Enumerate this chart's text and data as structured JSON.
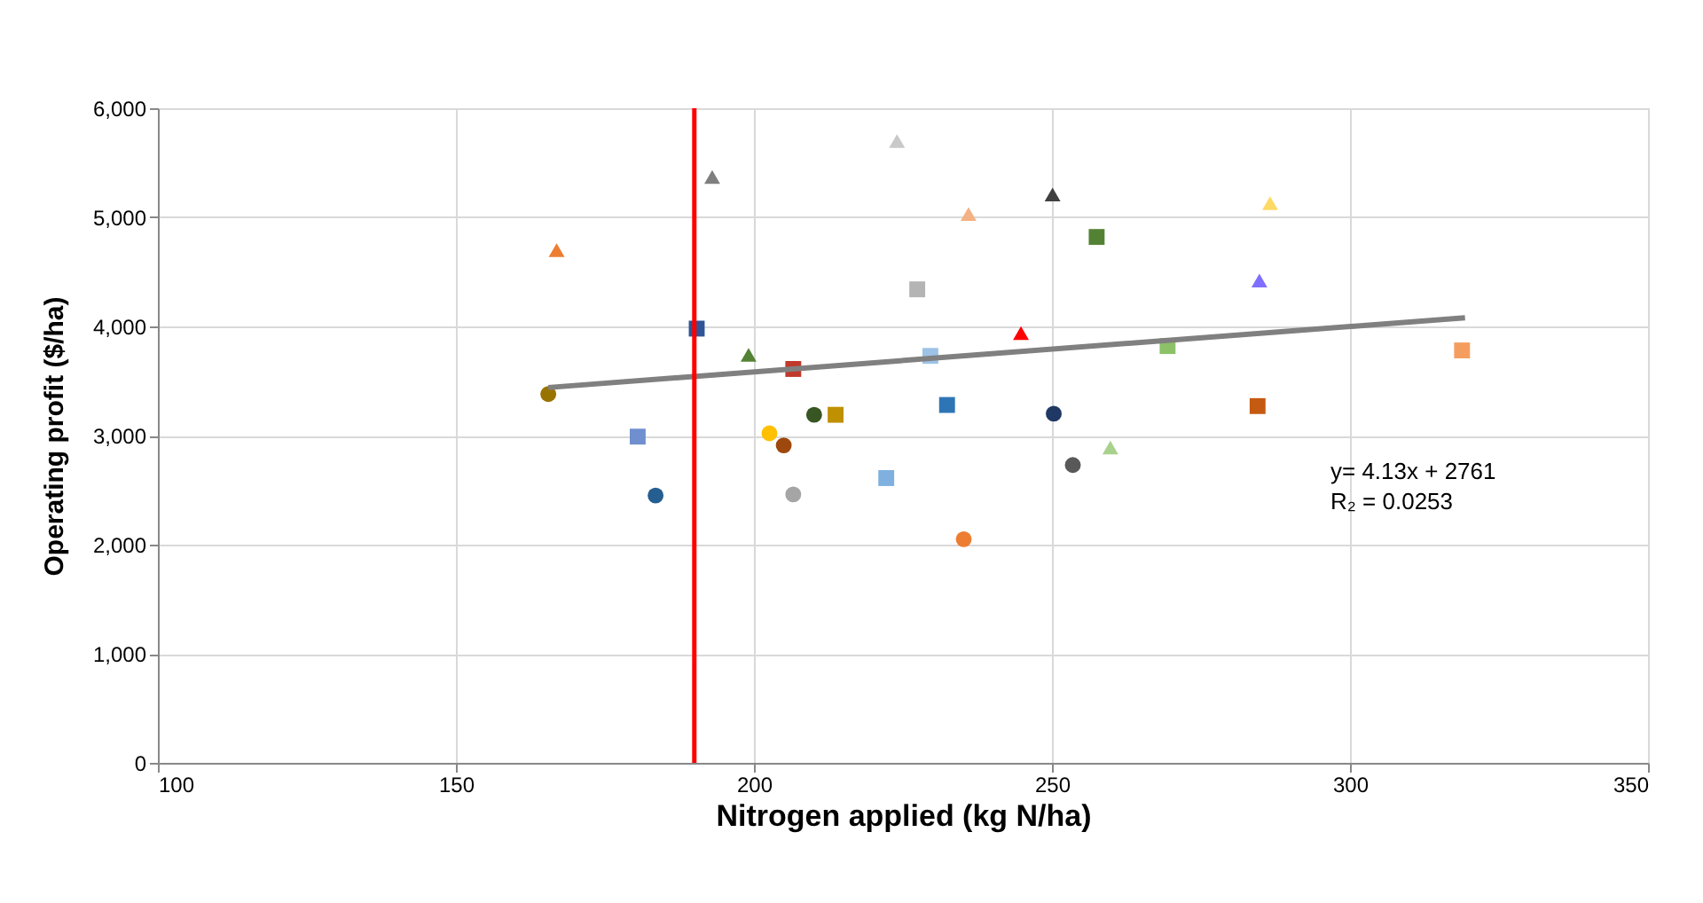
{
  "chart_data": {
    "type": "scatter",
    "xlabel": "Nitrogen applied (kg N/ha)",
    "ylabel": "Operating profit ($/ha)",
    "xlim": [
      100,
      350
    ],
    "xticks": [
      100,
      150,
      200,
      250,
      300,
      350
    ],
    "ylim": [
      0,
      6000
    ],
    "yticks": [
      {
        "value": 0,
        "label": "0"
      },
      {
        "value": 1000,
        "label": "1,000"
      },
      {
        "value": 2000,
        "label": "2,000"
      },
      {
        "value": 3000,
        "label": "3,000"
      },
      {
        "value": 4000,
        "label": "4,000"
      },
      {
        "value": 5000,
        "label": "5,000"
      },
      {
        "value": 6000,
        "label": "6,000"
      }
    ],
    "grid": true,
    "series": [
      {
        "marker": "triangle",
        "x": [
          166.9,
          193,
          224,
          236,
          250.1,
          244.8,
          199.1,
          286.6,
          284.8,
          259.8
        ],
        "values": [
          4700,
          5370,
          5700,
          5030,
          5210,
          3940,
          3740,
          5130,
          4420,
          2890
        ],
        "colors": [
          "#ed7d31",
          "#7f7f7f",
          "#c9c9c9",
          "#f4b183",
          "#404040",
          "#ff0000",
          "#548235",
          "#ffd966",
          "#7f6fff",
          "#a9d18e"
        ]
      },
      {
        "marker": "square",
        "x": [
          227.4,
          190.4,
          206.6,
          229.6,
          213.7,
          232.4,
          180.5,
          222.2,
          257.5,
          269.4,
          318.8,
          284.5
        ],
        "values": [
          4340,
          3980,
          3610,
          3730,
          3190,
          3280,
          2990,
          2610,
          4820,
          3820,
          3780,
          3270
        ],
        "colors": [
          "#b4b4b4",
          "#2f5597",
          "#c0392b",
          "#9dc3e6",
          "#bf9000",
          "#2e75b6",
          "#6f8fcf",
          "#7fb0e0",
          "#548235",
          "#8cc168",
          "#f59d5f",
          "#c55a11"
        ]
      },
      {
        "marker": "circle",
        "x": [
          165.5,
          210.1,
          250.3,
          202.6,
          205,
          183.5,
          206.6,
          235.2,
          253.5
        ],
        "values": [
          3380,
          3190,
          3200,
          3020,
          2910,
          2450,
          2460,
          2050,
          2730
        ],
        "colors": [
          "#997300",
          "#375623",
          "#203864",
          "#ffc000",
          "#9e480e",
          "#255e91",
          "#a5a5a5",
          "#ed7d31",
          "#595959"
        ]
      },
      {
        "type": "line",
        "x": [
          165.5,
          319.3
        ],
        "values": [
          3440,
          4080
        ],
        "color": "#808080"
      }
    ],
    "ref_lines": [
      {
        "axis": "x",
        "value": 190,
        "color": "#ff0000"
      }
    ],
    "annotations": [
      "y= 4.13x + 2761",
      "R₂ = 0.0253"
    ]
  }
}
